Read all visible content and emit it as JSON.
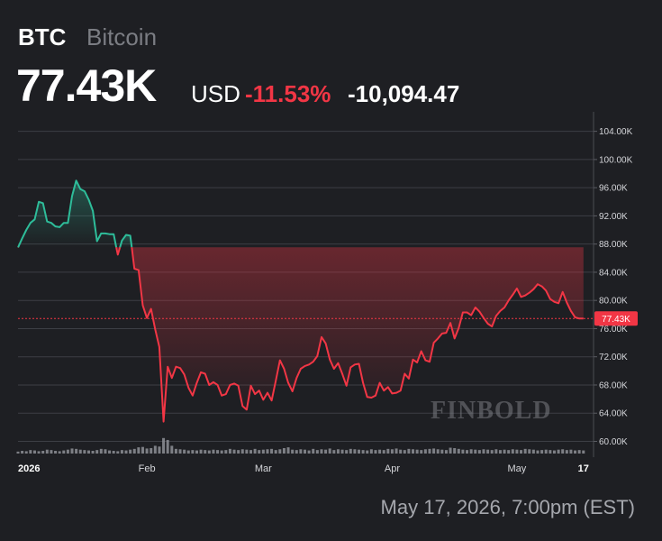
{
  "header": {
    "ticker": "BTC",
    "name": "Bitcoin",
    "price": "77.43K",
    "currency": "USD",
    "change_pct": "-11.53%",
    "change_abs": "-10,094.47"
  },
  "footer": {
    "timestamp": "May 17, 2026, 7:00pm (EST)"
  },
  "watermark": "FINBOLD",
  "colors": {
    "up": "#2ebd9a",
    "down": "#f23645",
    "background": "#1e1f23",
    "volume": "#8e9096"
  },
  "chart_data": {
    "type": "line",
    "y_ticks": [
      "104.00K",
      "100.00K",
      "96.00K",
      "92.00K",
      "88.00K",
      "84.00K",
      "80.00K",
      "76.00K",
      "72.00K",
      "68.00K",
      "64.00K",
      "60.00K"
    ],
    "ylim": [
      58400,
      106000
    ],
    "x_ticks": [
      {
        "label": "2026",
        "x": 0,
        "bold": true
      },
      {
        "label": "Feb",
        "x": 31
      },
      {
        "label": "Mar",
        "x": 59
      },
      {
        "label": "Apr",
        "x": 90
      },
      {
        "label": "May",
        "x": 120
      },
      {
        "label": "17",
        "x": 136,
        "bold": true
      }
    ],
    "xlim": [
      0,
      138
    ],
    "last_price": 77430,
    "last_price_label": "77.43K",
    "baseline": 87530,
    "series": [
      {
        "x": [
          0,
          1,
          2,
          3,
          4,
          5,
          6,
          7,
          8,
          9,
          10,
          11,
          12,
          13,
          14,
          15,
          16,
          17,
          18,
          19,
          20,
          21,
          22,
          23,
          24,
          25,
          26,
          27,
          28,
          29,
          30,
          31,
          32,
          33,
          34,
          35,
          36,
          37,
          38,
          39,
          40,
          41,
          42,
          43,
          44,
          45,
          46,
          47,
          48,
          49,
          50,
          51,
          52,
          53,
          54,
          55,
          56,
          57,
          58,
          59,
          60,
          61,
          62,
          63,
          64,
          65,
          66,
          67,
          68,
          69,
          70,
          71,
          72,
          73,
          74,
          75,
          76,
          77,
          78,
          79,
          80,
          81,
          82,
          83,
          84,
          85,
          86,
          87,
          88,
          89,
          90,
          91,
          92,
          93,
          94,
          95,
          96,
          97,
          98,
          99,
          100,
          101,
          102,
          103,
          104,
          105,
          106,
          107,
          108,
          109,
          110,
          111,
          112,
          113,
          114,
          115,
          116,
          117,
          118,
          119,
          120,
          121,
          122,
          123,
          124,
          125,
          126,
          127,
          128,
          129,
          130,
          131,
          132,
          133,
          134,
          135,
          136
        ],
        "values": [
          87500,
          88800,
          90000,
          91000,
          91500,
          94000,
          93800,
          91200,
          91000,
          90500,
          90400,
          91000,
          91000,
          94800,
          97000,
          95800,
          95500,
          94300,
          92700,
          88400,
          89500,
          89500,
          89400,
          89400,
          86500,
          88500,
          89300,
          89200,
          84500,
          84300,
          79300,
          77500,
          78800,
          75900,
          73400,
          62800,
          70600,
          69000,
          70600,
          70400,
          69500,
          67600,
          66500,
          68300,
          69800,
          69600,
          68000,
          68400,
          68000,
          66500,
          66700,
          68000,
          68200,
          67900,
          65000,
          64500,
          67900,
          66700,
          67200,
          65900,
          66900,
          65800,
          68600,
          71500,
          70300,
          68300,
          67100,
          69000,
          70300,
          70700,
          70900,
          71300,
          72100,
          74800,
          73900,
          71600,
          70300,
          71100,
          69600,
          67900,
          70500,
          70900,
          71000,
          68300,
          66300,
          66200,
          66500,
          68300,
          67200,
          67700,
          66800,
          66900,
          67200,
          69600,
          68900,
          71600,
          71200,
          72800,
          71500,
          71300,
          74000,
          74600,
          75300,
          75400,
          76800,
          74600,
          76100,
          78300,
          78300,
          77900,
          79000,
          78400,
          77500,
          76700,
          76300,
          77800,
          78500,
          79000,
          80000,
          80800,
          81700,
          80500,
          80700,
          81100,
          81600,
          82300,
          82000,
          81400,
          80200,
          79800,
          79600,
          81200,
          79700,
          78500,
          77600,
          77430,
          77430
        ]
      }
    ],
    "volume_ylim": [
      0,
      100
    ],
    "volume": [
      5,
      7,
      6,
      9,
      8,
      6,
      7,
      10,
      9,
      7,
      6,
      8,
      10,
      13,
      12,
      10,
      9,
      8,
      7,
      9,
      12,
      11,
      8,
      7,
      6,
      9,
      8,
      10,
      12,
      16,
      17,
      13,
      14,
      20,
      18,
      40,
      35,
      20,
      12,
      11,
      10,
      8,
      9,
      8,
      10,
      9,
      8,
      10,
      9,
      8,
      9,
      12,
      10,
      9,
      11,
      10,
      9,
      12,
      9,
      10,
      11,
      12,
      9,
      11,
      14,
      16,
      10,
      9,
      11,
      10,
      8,
      12,
      9,
      11,
      10,
      13,
      9,
      11,
      10,
      9,
      12,
      11,
      10,
      9,
      8,
      11,
      9,
      10,
      9,
      12,
      11,
      13,
      10,
      9,
      12,
      11,
      10,
      9,
      11,
      12,
      13,
      11,
      10,
      9,
      15,
      14,
      12,
      10,
      9,
      11,
      10,
      9,
      11,
      10,
      9,
      11,
      9,
      10,
      9,
      11,
      10,
      9,
      12,
      11,
      10,
      8,
      9,
      10,
      9,
      8,
      10,
      11,
      9,
      10,
      8,
      9,
      8
    ]
  }
}
